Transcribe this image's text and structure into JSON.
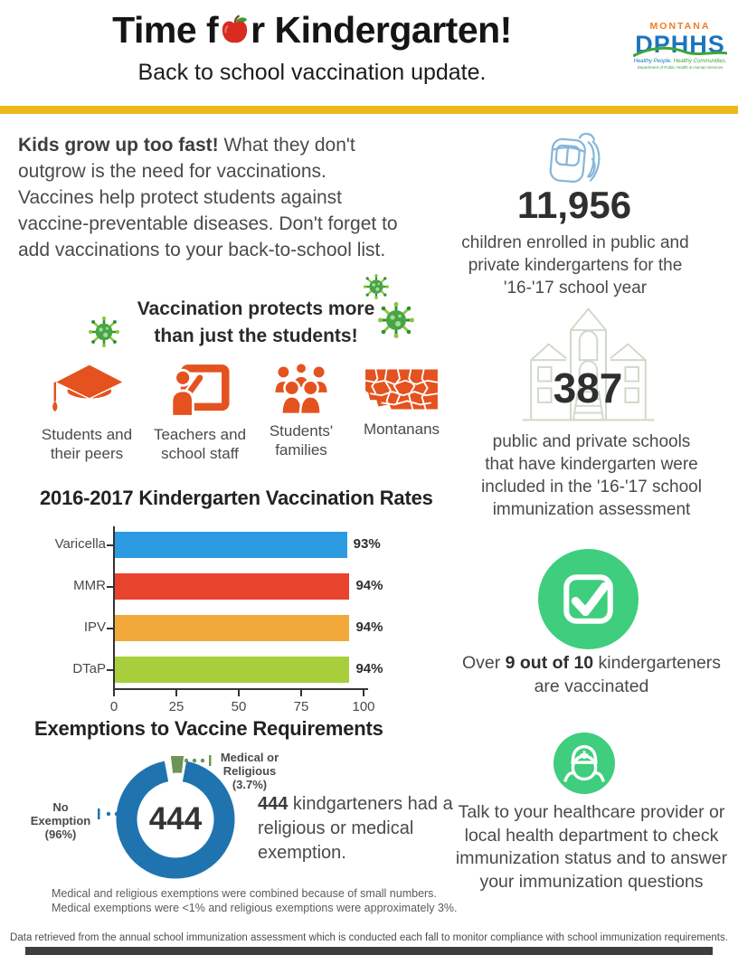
{
  "header": {
    "title_pre": "Time f",
    "title_post": "r Kindergarten!",
    "subtitle": "Back to school vaccination update.",
    "divider_color": "#efb91a",
    "logo": {
      "region": "MONTANA",
      "org": "DPHHS",
      "tagline_1": "Healthy People.",
      "tagline_2": "Healthy Communities.",
      "subline": "Department of Public Health & Human Services",
      "region_color": "#f07c22",
      "org_color": "#1c75bc",
      "accent_green": "#3da63d"
    }
  },
  "intro": {
    "lead": "Kids grow up too fast!",
    "body": " What they don't outgrow is the need for vaccinations. Vaccines help protect students against vaccine-preventable diseases. Don't forget to add vaccinations to your back-to-school list."
  },
  "protect": {
    "heading_line1": "Vaccination protects more",
    "heading_line2": "than just the students!",
    "icon_color": "#e4521f",
    "items": [
      {
        "icon": "graduation-cap-icon",
        "label": "Students and their peers"
      },
      {
        "icon": "teacher-board-icon",
        "label": "Teachers and school staff"
      },
      {
        "icon": "students-families-icon",
        "label": "Students' families"
      },
      {
        "icon": "montana-map-icon",
        "label": "Montanans"
      }
    ]
  },
  "stats": {
    "enrollment": {
      "value": "11,956",
      "caption": "children enrolled in public and private kindergartens for the '16-'17 school year",
      "icon": "backpack-icon"
    },
    "schools": {
      "value": "387",
      "caption": "public and private schools that have kindergarten were included in the '16-'17 school immunization assessment",
      "icon": "school-building-icon"
    },
    "vaccinated": {
      "pre": "Over ",
      "highlight": "9 out of 10",
      "post": " kindergarteners are vaccinated",
      "icon": "checkmark-icon",
      "circle_color": "#3ece7e"
    },
    "advice": {
      "text": "Talk to your healthcare provider or local health department to check immunization status and to answer your immunization questions",
      "icon": "nurse-icon",
      "circle_color": "#3ece7e"
    }
  },
  "chart_data": [
    {
      "type": "bar",
      "orientation": "horizontal",
      "title": "2016-2017 Kindergarten Vaccination Rates",
      "categories": [
        "Varicella",
        "MMR",
        "IPV",
        "DTaP"
      ],
      "values": [
        93,
        94,
        94,
        94
      ],
      "value_labels": [
        "93%",
        "94%",
        "94%",
        "94%"
      ],
      "bar_colors": [
        "#2d9be2",
        "#e8432c",
        "#f2a93b",
        "#a8ce3b"
      ],
      "xlim": [
        0,
        100
      ],
      "xticks": [
        0,
        25,
        50,
        75,
        100
      ],
      "grid": false,
      "legend": false
    },
    {
      "type": "pie",
      "subtype": "donut",
      "title": "Exemptions to Vaccine Requirements",
      "center_label": "444",
      "slices": [
        {
          "label": "No Exemption",
          "pct": 96,
          "pct_label": "(96%)",
          "color": "#1f74b0"
        },
        {
          "label": "Medical or Religious",
          "pct": 3.7,
          "pct_label": "(3.7%)",
          "color": "#6d9456"
        }
      ]
    }
  ],
  "exemptions": {
    "heading": "Exemptions to Vaccine Requirements",
    "note_bold": "444",
    "note_text": " kindgarteners had a religious or medical exemption.",
    "footnote_1": "Medical and religious exemptions were combined because of small numbers.",
    "footnote_2": "Medical exemptions were <1% and religious exemptions were approximately 3%."
  },
  "footer": {
    "text": "Data retrieved from the annual school immunization assessment which is conducted each fall to monitor compliance with school immunization requirements."
  }
}
